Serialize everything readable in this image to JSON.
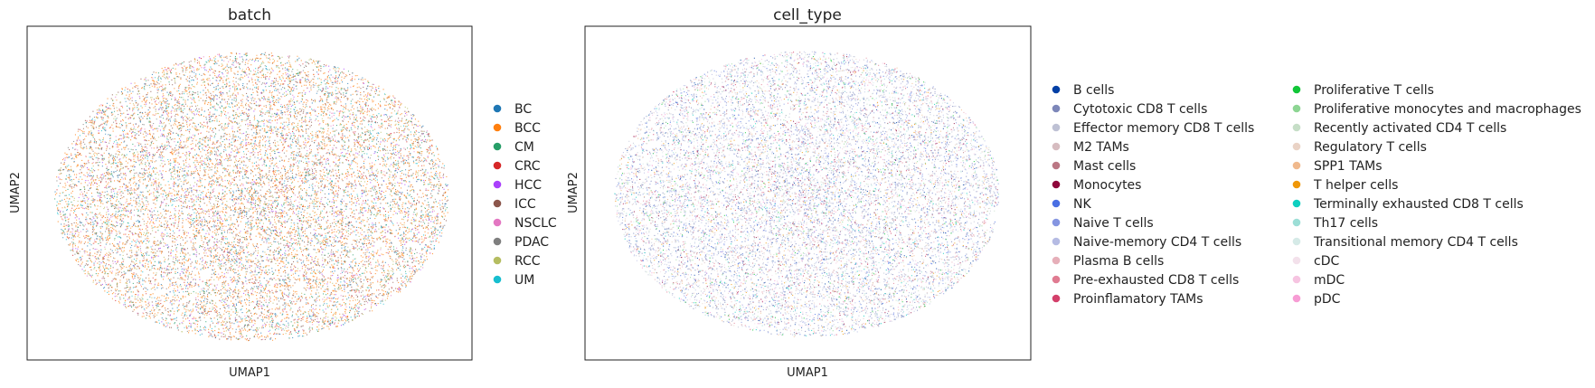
{
  "chart_data": [
    {
      "type": "scatter",
      "title": "batch",
      "xlabel": "UMAP1",
      "ylabel": "UMAP2",
      "grid": false,
      "ticks": false,
      "legend_placement": "right",
      "legend_columns": 1,
      "shape": "dense-ellipse-cloud",
      "categories": [
        {
          "name": "BC",
          "color": "#1f77b4"
        },
        {
          "name": "BCC",
          "color": "#ff7f0e"
        },
        {
          "name": "CM",
          "color": "#279e68"
        },
        {
          "name": "CRC",
          "color": "#d62728"
        },
        {
          "name": "HCC",
          "color": "#aa40fc"
        },
        {
          "name": "ICC",
          "color": "#8c564b"
        },
        {
          "name": "NSCLC",
          "color": "#e377c2"
        },
        {
          "name": "PDAC",
          "color": "#7f7f7f"
        },
        {
          "name": "RCC",
          "color": "#b5bd61"
        },
        {
          "name": "UM",
          "color": "#17becf"
        }
      ]
    },
    {
      "type": "scatter",
      "title": "cell_type",
      "xlabel": "UMAP1",
      "ylabel": "UMAP2",
      "grid": false,
      "ticks": false,
      "legend_placement": "right",
      "legend_columns": 2,
      "shape": "dense-ellipse-cloud",
      "categories": [
        {
          "name": "B cells",
          "color": "#023fa5"
        },
        {
          "name": "Cytotoxic CD8 T cells",
          "color": "#7d87b9"
        },
        {
          "name": "Effector memory CD8 T cells",
          "color": "#bec1d4"
        },
        {
          "name": "M2 TAMs",
          "color": "#d6bcc0"
        },
        {
          "name": "Mast cells",
          "color": "#bb7784"
        },
        {
          "name": "Monocytes",
          "color": "#8e063b"
        },
        {
          "name": "NK",
          "color": "#4a6fe3"
        },
        {
          "name": "Naive T cells",
          "color": "#8595e1"
        },
        {
          "name": "Naive-memory CD4 T cells",
          "color": "#b5bbe3"
        },
        {
          "name": "Plasma B cells",
          "color": "#e6afb9"
        },
        {
          "name": "Pre-exhausted CD8 T cells",
          "color": "#e07b91"
        },
        {
          "name": "Proinflamatory TAMs",
          "color": "#d33f6a"
        },
        {
          "name": "Proliferative T cells",
          "color": "#11c638"
        },
        {
          "name": "Proliferative monocytes and macrophages",
          "color": "#8dd593"
        },
        {
          "name": "Recently activated CD4 T cells",
          "color": "#c6dec7"
        },
        {
          "name": "Regulatory T cells",
          "color": "#ead3c6"
        },
        {
          "name": "SPP1 TAMs",
          "color": "#f0b98d"
        },
        {
          "name": "T helper cells",
          "color": "#ef9708"
        },
        {
          "name": "Terminally exhausted CD8 T cells",
          "color": "#0fcfc0"
        },
        {
          "name": "Th17 cells",
          "color": "#9cded6"
        },
        {
          "name": "Transitional memory CD4 T cells",
          "color": "#d5eae7"
        },
        {
          "name": "cDC",
          "color": "#f3e1eb"
        },
        {
          "name": "mDC",
          "color": "#f6c4e1"
        },
        {
          "name": "pDC",
          "color": "#f79cd4"
        }
      ]
    }
  ]
}
